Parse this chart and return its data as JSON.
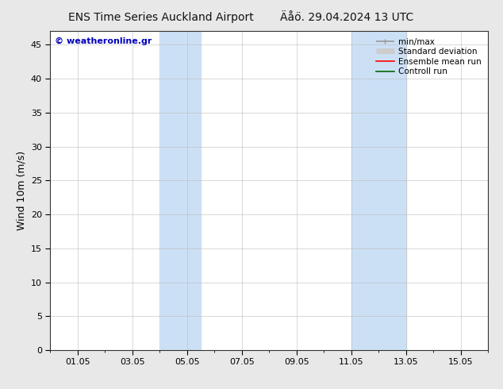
{
  "title": "ENS Time Series Auckland Airport",
  "title2": "Äåο̈. 29.04.2024 13 UTC",
  "ylabel": "Wind 10m (m/s)",
  "watermark": "© weatheronline.gr",
  "background_color": "#e8e8e8",
  "plot_bg_color": "#ffffff",
  "shaded_bands": [
    {
      "x_start": 4.0,
      "x_end": 5.5
    },
    {
      "x_start": 11.0,
      "x_end": 13.0
    }
  ],
  "shade_color": "#cce0f5",
  "yticks": [
    0,
    5,
    10,
    15,
    20,
    25,
    30,
    35,
    40,
    45
  ],
  "ymax": 47,
  "ymin": 0,
  "xticks": [
    1,
    3,
    5,
    7,
    9,
    11,
    13,
    15
  ],
  "xticklabels": [
    "01.05",
    "03.05",
    "05.05",
    "07.05",
    "09.05",
    "11.05",
    "13.05",
    "15.05"
  ],
  "xmin": 0.0,
  "xmax": 16.0,
  "legend_items": [
    {
      "label": "min/max",
      "color": "#999999",
      "lw": 1.2
    },
    {
      "label": "Standard deviation",
      "color": "#cccccc",
      "lw": 5
    },
    {
      "label": "Ensemble mean run",
      "color": "#ff0000",
      "lw": 1.2
    },
    {
      "label": "Controll run",
      "color": "#006600",
      "lw": 1.2
    }
  ],
  "watermark_color": "#0000bb",
  "title_fontsize": 10,
  "axis_fontsize": 9,
  "tick_fontsize": 8,
  "legend_fontsize": 7.5
}
